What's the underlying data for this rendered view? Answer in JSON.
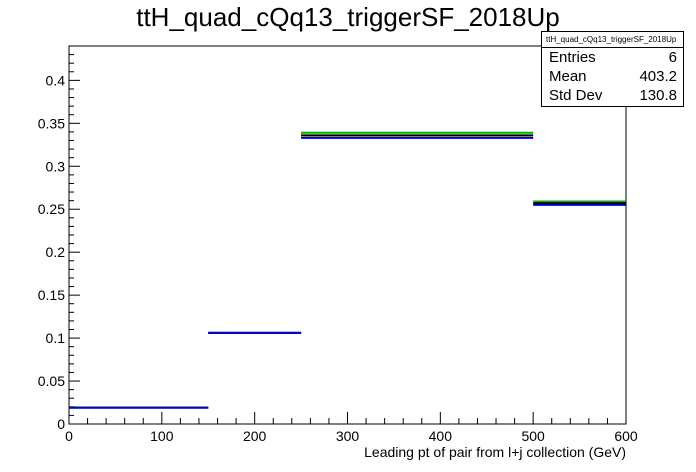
{
  "title": "ttH_quad_cQq13_triggerSF_2018Up",
  "stats": {
    "name": "ttH_quad_cQq13_triggerSF_2018Up",
    "rows": [
      {
        "label": "Entries",
        "value": "6"
      },
      {
        "label": "Mean",
        "value": "403.2"
      },
      {
        "label": "Std Dev",
        "value": "130.8"
      }
    ]
  },
  "chart_data": {
    "type": "step",
    "title": "ttH_quad_cQq13_triggerSF_2018Up",
    "xlabel": "Leading pt of pair from l+j collection (GeV)",
    "ylabel": "",
    "xlim": [
      0,
      600
    ],
    "ylim": [
      0,
      0.44
    ],
    "x_ticks": [
      0,
      100,
      200,
      300,
      400,
      500,
      600
    ],
    "x_tick_labels": [
      "0",
      "100",
      "200",
      "300",
      "400",
      "500",
      "600"
    ],
    "y_ticks": [
      0,
      0.05,
      0.1,
      0.15,
      0.2,
      0.25,
      0.3,
      0.35,
      0.4
    ],
    "y_tick_labels": [
      "0",
      "0.05",
      "0.1",
      "0.15",
      "0.2",
      "0.25",
      "0.3",
      "0.35",
      "0.4"
    ],
    "bin_edges": [
      0,
      150,
      250,
      500,
      600
    ],
    "series": [
      {
        "color": "#00b000",
        "values": [
          0.019,
          0.106,
          0.339,
          0.259
        ]
      },
      {
        "color": "#000000",
        "values": [
          0.019,
          0.106,
          0.336,
          0.257
        ]
      },
      {
        "color": "#0000cc",
        "values": [
          0.019,
          0.106,
          0.333,
          0.255
        ]
      }
    ]
  }
}
